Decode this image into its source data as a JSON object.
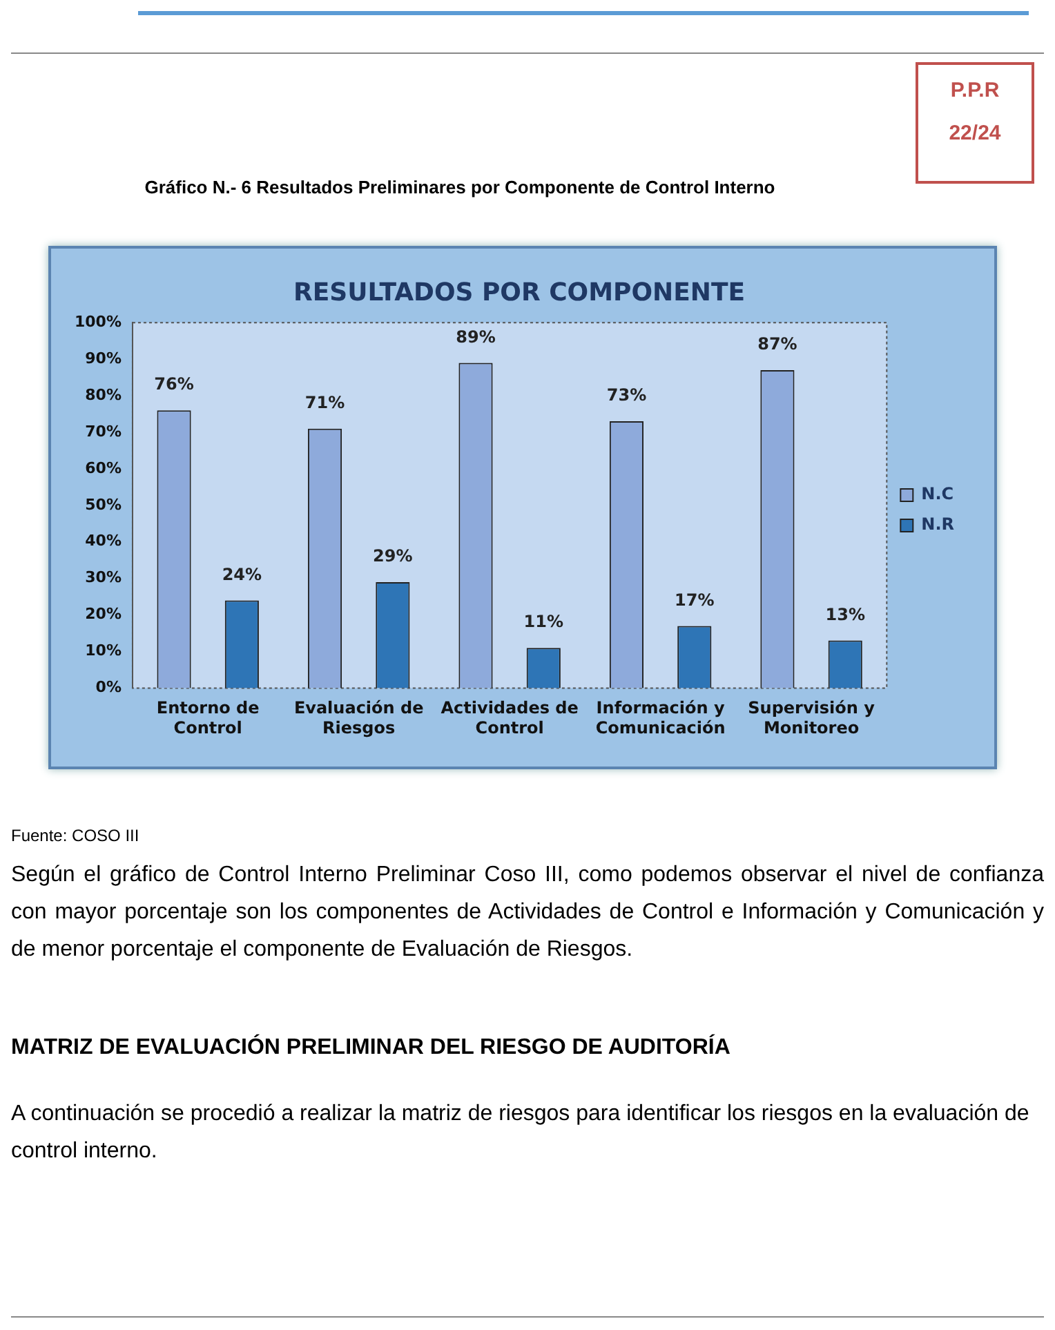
{
  "chart_data": {
    "type": "bar",
    "title": "Gráfico N.- 6 Resultados Preliminares por Componente de Control Interno",
    "subtitle": "RESULTADOS POR COMPONENTE",
    "categories": [
      "Entorno de Control",
      "Evaluación de Riesgos",
      "Actividades de Control",
      "Información y Comunicación",
      "Supervisión y Monitoreo"
    ],
    "series": [
      {
        "name": "N.C",
        "color": "#8eaadb",
        "values": [
          76,
          71,
          89,
          73,
          87
        ],
        "value_labels": [
          "76%",
          "71%",
          "89%",
          "73%",
          "87%"
        ]
      },
      {
        "name": "N.R",
        "color": "#2e75b6",
        "values": [
          24,
          29,
          11,
          17,
          13
        ],
        "value_labels": [
          "24%",
          "29%",
          "11%",
          "17%",
          "13%"
        ]
      }
    ],
    "ylim": [
      0,
      100
    ],
    "yticks": [
      {
        "value": 0,
        "label": "0%"
      },
      {
        "value": 10,
        "label": "10%"
      },
      {
        "value": 20,
        "label": "20%"
      },
      {
        "value": 30,
        "label": "30%"
      },
      {
        "value": 40,
        "label": "40%"
      },
      {
        "value": 50,
        "label": "50%"
      },
      {
        "value": 60,
        "label": "60%"
      },
      {
        "value": 70,
        "label": "70%"
      },
      {
        "value": 80,
        "label": "80%"
      },
      {
        "value": 90,
        "label": "90%"
      },
      {
        "value": 100,
        "label": "100%"
      }
    ],
    "grid": false,
    "legend": "right",
    "annotations": [
      "P.P.R",
      "22/24",
      "Fuente: COSO III",
      "Según el gráfico de Control Interno Preliminar Coso III, como podemos observar el nivel de confianza con mayor porcentaje son los componentes de Actividades de Control e Información y Comunicación y de menor porcentaje el componente de Evaluación de Riesgos.",
      "MATRIZ DE EVALUACIÓN PRELIMINAR DEL RIESGO DE AUDITORÍA",
      "A continuación se procedió a realizar la matriz de riesgos para identificar los riesgos en la evaluación de control interno."
    ]
  }
}
